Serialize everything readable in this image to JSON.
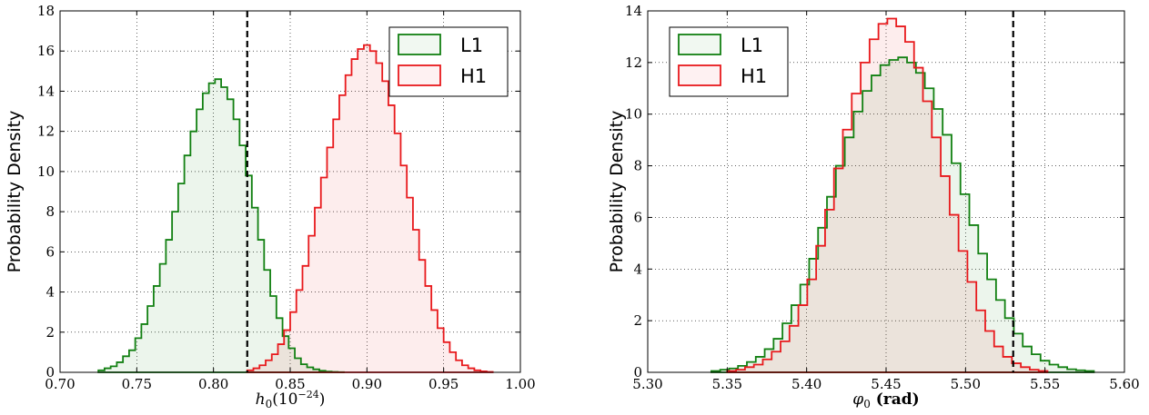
{
  "chart_data": [
    {
      "type": "histogram",
      "xlabel": "h_0(10^{-24})",
      "xlabel_parts": {
        "main": "h",
        "sub": "0",
        "paren_open": "(10",
        "sup": "−24",
        "paren_close": ")"
      },
      "ylabel": "Probability Density",
      "xlim": [
        0.7,
        1.0
      ],
      "ylim": [
        0,
        18
      ],
      "xticks": [
        "0.70",
        "0.75",
        "0.80",
        "0.85",
        "0.90",
        "0.95",
        "1.00"
      ],
      "yticks": [
        "0",
        "2",
        "4",
        "6",
        "8",
        "10",
        "12",
        "14",
        "16",
        "18"
      ],
      "grid": true,
      "legend_position": "top-right",
      "vline": 0.822,
      "series": [
        {
          "name": "L1",
          "color": "#128012",
          "values": [
            0.1,
            0.2,
            0.3,
            0.5,
            0.8,
            1.1,
            1.7,
            2.4,
            3.3,
            4.3,
            5.4,
            6.6,
            8.0,
            9.4,
            10.8,
            12.0,
            13.1,
            13.9,
            14.4,
            14.6,
            14.2,
            13.6,
            12.6,
            11.3,
            9.8,
            8.2,
            6.6,
            5.1,
            3.8,
            2.7,
            1.8,
            1.2,
            0.7,
            0.4,
            0.25,
            0.15,
            0.08,
            0.04,
            0.02,
            0.01
          ],
          "x_start": 0.725,
          "bin_width": 0.004
        },
        {
          "name": "H1",
          "color": "#e8191c",
          "values": [
            0.1,
            0.2,
            0.35,
            0.6,
            0.9,
            1.4,
            2.1,
            3.0,
            4.1,
            5.3,
            6.8,
            8.2,
            9.7,
            11.2,
            12.6,
            13.8,
            14.8,
            15.6,
            16.1,
            16.3,
            16.0,
            15.4,
            14.5,
            13.3,
            11.9,
            10.3,
            8.7,
            7.1,
            5.6,
            4.3,
            3.1,
            2.2,
            1.5,
            1.0,
            0.6,
            0.35,
            0.2,
            0.1,
            0.05,
            0.02
          ],
          "x_start": 0.822,
          "bin_width": 0.004
        }
      ]
    },
    {
      "type": "histogram",
      "xlabel": "φ_0 (rad)",
      "xlabel_parts": {
        "main": "φ",
        "sub": "0",
        "rest": " (rad)"
      },
      "ylabel": "Probability Density",
      "xlim": [
        5.3,
        5.6
      ],
      "ylim": [
        0,
        14
      ],
      "xticks": [
        "5.30",
        "5.35",
        "5.40",
        "5.45",
        "5.50",
        "5.55",
        "5.60"
      ],
      "yticks": [
        "0",
        "2",
        "4",
        "6",
        "8",
        "10",
        "12",
        "14"
      ],
      "grid": true,
      "legend_position": "top-left",
      "vline": 5.53,
      "series": [
        {
          "name": "L1",
          "color": "#128012",
          "values": [
            0.05,
            0.1,
            0.15,
            0.25,
            0.4,
            0.6,
            0.9,
            1.3,
            1.9,
            2.6,
            3.4,
            4.4,
            5.6,
            6.8,
            8.0,
            9.1,
            10.1,
            10.9,
            11.5,
            11.9,
            12.1,
            12.2,
            12.0,
            11.6,
            11.0,
            10.2,
            9.2,
            8.1,
            6.9,
            5.7,
            4.6,
            3.6,
            2.8,
            2.1,
            1.5,
            1.0,
            0.7,
            0.45,
            0.3,
            0.2,
            0.12,
            0.08,
            0.05
          ],
          "x_start": 5.34,
          "bin_width": 0.0056
        },
        {
          "name": "H1",
          "color": "#e8191c",
          "values": [
            0.05,
            0.1,
            0.2,
            0.3,
            0.5,
            0.8,
            1.2,
            1.8,
            2.6,
            3.6,
            4.9,
            6.3,
            7.9,
            9.4,
            10.8,
            12.0,
            12.9,
            13.5,
            13.7,
            13.4,
            12.8,
            11.8,
            10.5,
            9.1,
            7.6,
            6.1,
            4.7,
            3.5,
            2.4,
            1.6,
            1.0,
            0.6,
            0.35,
            0.2,
            0.1,
            0.05
          ],
          "x_start": 5.35,
          "bin_width": 0.0056
        }
      ]
    }
  ]
}
